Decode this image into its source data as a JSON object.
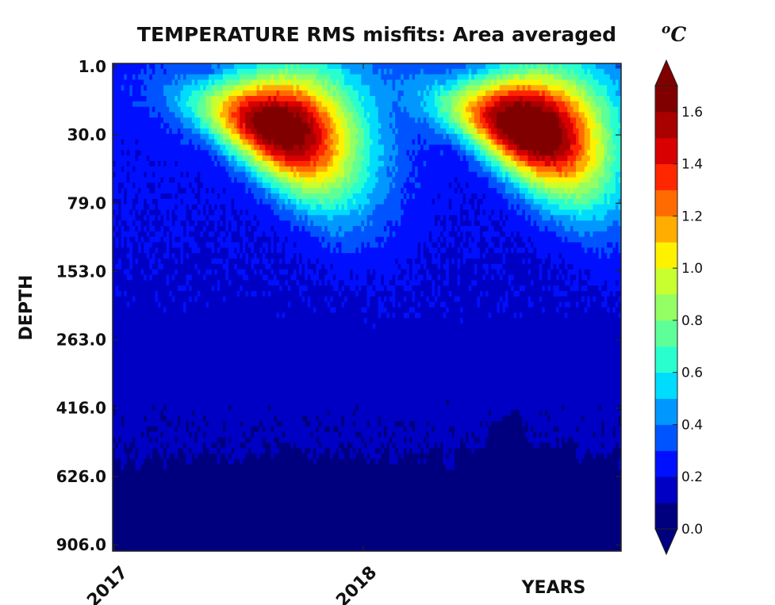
{
  "chart_data": {
    "type": "heatmap",
    "title": "TEMPERATURE RMS misfits: Area averaged",
    "units": "°C",
    "units_base": "C",
    "units_sup": "o",
    "xlabel": "YEARS",
    "ylabel": "DEPTH",
    "x_ticks": [
      "2017",
      "2018"
    ],
    "y_ticks": [
      "1.0",
      "30.0",
      "79.0",
      "153.0",
      "263.0",
      "416.0",
      "626.0",
      "906.0"
    ],
    "y_axis": "depth levels increasing downward",
    "colorbar": {
      "min": 0.0,
      "max": 1.7,
      "step": 0.1,
      "extend": "both",
      "tick_labels": [
        "0.0",
        "0.2",
        "0.4",
        "0.6",
        "0.8",
        "1.0",
        "1.2",
        "1.4",
        "1.6"
      ],
      "tick_values": [
        0.0,
        0.2,
        0.4,
        0.6,
        0.8,
        1.0,
        1.2,
        1.4,
        1.6
      ]
    },
    "colormap": [
      "#00007f",
      "#0000c4",
      "#0010ff",
      "#0054ff",
      "#0098ff",
      "#00dcfe",
      "#29ffce",
      "#5eff99",
      "#93ff64",
      "#c8ff2e",
      "#fef200",
      "#ffad00",
      "#ff6b00",
      "#ff2600",
      "#d80000",
      "#a90000",
      "#800000"
    ],
    "x_range": [
      "2017",
      "2019"
    ],
    "features": [
      {
        "name": "summer maximum 2017",
        "value_max": 1.65,
        "depth_range": [
          "1.0",
          "79.0"
        ]
      },
      {
        "name": "summer maximum 2018",
        "value_max": 1.7,
        "depth_range": [
          "1.0",
          "79.0"
        ]
      },
      {
        "name": "deep layer minimum",
        "value": 0.05,
        "depth_range": [
          "626.0",
          "906.0"
        ]
      },
      {
        "name": "intermediate background",
        "value": 0.15,
        "depth_range": [
          "153.0",
          "626.0"
        ]
      }
    ]
  }
}
